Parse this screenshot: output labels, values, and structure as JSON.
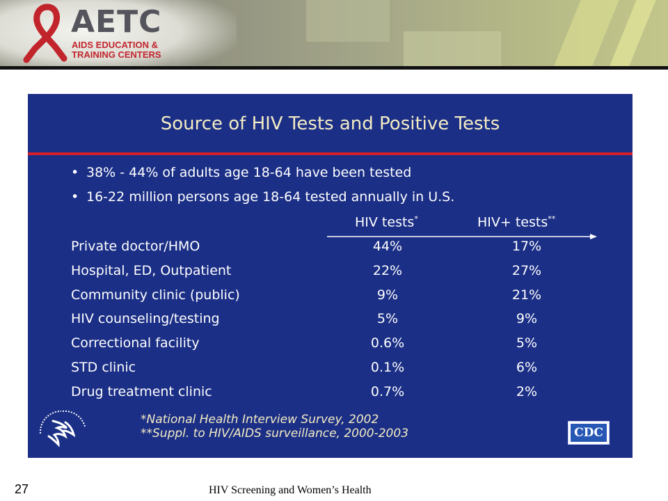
{
  "header": {
    "logo_word": "AETC",
    "logo_sub_line1": "AIDS EDUCATION &",
    "logo_sub_line2": "TRAINING CENTERS",
    "brand_red": "#c2242c"
  },
  "slide": {
    "title": "Source of HIV Tests and Positive Tests",
    "background": "#1b2f86",
    "bullets": [
      "38% - 44% of adults age 18-64 have been tested",
      "16-22 million persons age 18-64 tested annually in U.S."
    ],
    "columns": {
      "tests": "HIV tests",
      "tests_mark": "*",
      "positive": "HIV+ tests",
      "positive_mark": "**"
    },
    "rows": [
      {
        "source": "Private doctor/HMO",
        "tests": "44%",
        "positive": "17%"
      },
      {
        "source": "Hospital, ED, Outpatient",
        "tests": "22%",
        "positive": "27%"
      },
      {
        "source": "Community clinic (public)",
        "tests": "9%",
        "positive": "21%"
      },
      {
        "source": "HIV counseling/testing",
        "tests": "5%",
        "positive": "9%"
      },
      {
        "source": "Correctional facility",
        "tests": "0.6%",
        "positive": "5%"
      },
      {
        "source": "STD clinic",
        "tests": "0.1%",
        "positive": "6%"
      },
      {
        "source": "Drug treatment clinic",
        "tests": "0.7%",
        "positive": "2%"
      }
    ],
    "notes": [
      "*National Health Interview Survey, 2002",
      "**Suppl. to HIV/AIDS surveillance, 2000-2003"
    ],
    "cdc_logo": "CDC",
    "hhs_seal_icon": "hhs-eagle-seal"
  },
  "footer": {
    "slide_number": "27",
    "title": "HIV Screening and Women’s Health"
  }
}
